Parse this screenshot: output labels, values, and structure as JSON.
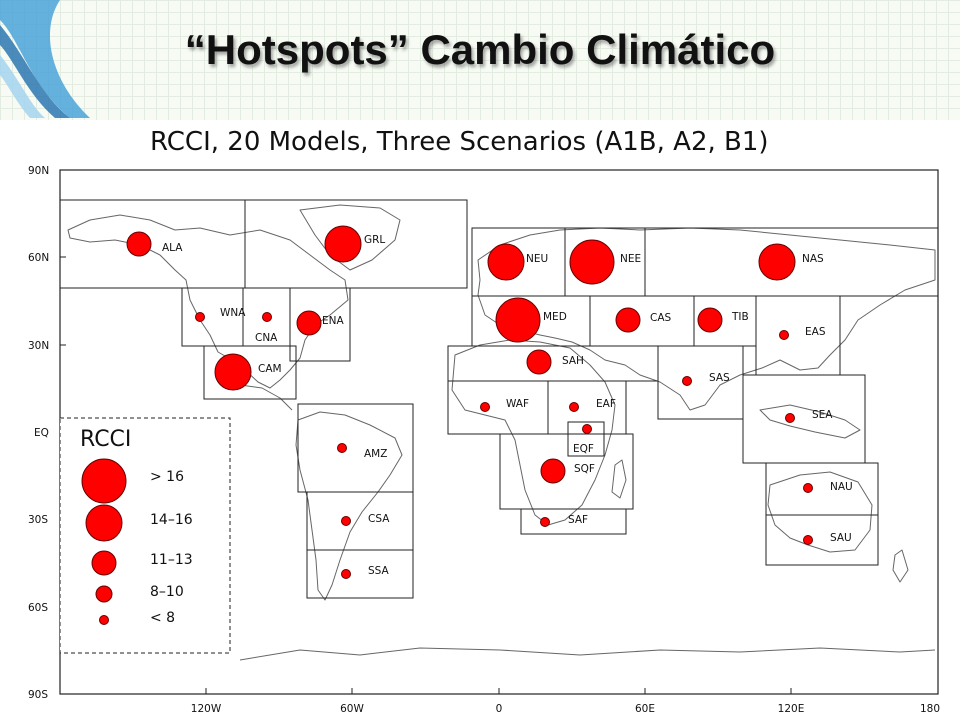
{
  "slide": {
    "title": "“Hotspots” Cambio Climático"
  },
  "map": {
    "title": "RCCI, 20 Models, Three Scenarios (A1B, A2, B1)",
    "y_axis_labels": [
      "90N",
      "60N",
      "30N",
      "EQ",
      "30S",
      "60S",
      "90S"
    ],
    "x_axis_labels": [
      "120W",
      "60W",
      "0",
      "60E",
      "120E",
      "180"
    ],
    "legend": {
      "title": "RCCI",
      "categories": [
        "> 16",
        "14–16",
        "11–13",
        "8–10",
        "< 8"
      ]
    },
    "regions": [
      {
        "code": "ALA",
        "rcci_class": 2
      },
      {
        "code": "GRL",
        "rcci_class": 1
      },
      {
        "code": "WNA",
        "rcci_class": 4
      },
      {
        "code": "CNA",
        "rcci_class": 4
      },
      {
        "code": "ENA",
        "rcci_class": 2
      },
      {
        "code": "CAM",
        "rcci_class": 1
      },
      {
        "code": "AMZ",
        "rcci_class": 5
      },
      {
        "code": "CSA",
        "rcci_class": 5
      },
      {
        "code": "SSA",
        "rcci_class": 5
      },
      {
        "code": "NEU",
        "rcci_class": 1
      },
      {
        "code": "NEE",
        "rcci_class": 0
      },
      {
        "code": "MED",
        "rcci_class": 0
      },
      {
        "code": "SAH",
        "rcci_class": 2
      },
      {
        "code": "WAF",
        "rcci_class": 4
      },
      {
        "code": "EAF",
        "rcci_class": 5
      },
      {
        "code": "EQF",
        "rcci_class": 5
      },
      {
        "code": "SQF",
        "rcci_class": 2
      },
      {
        "code": "SAF",
        "rcci_class": 4
      },
      {
        "code": "CAS",
        "rcci_class": 2
      },
      {
        "code": "TIB",
        "rcci_class": 2
      },
      {
        "code": "NAS",
        "rcci_class": 1
      },
      {
        "code": "EAS",
        "rcci_class": 5
      },
      {
        "code": "SAS",
        "rcci_class": 5
      },
      {
        "code": "SEA",
        "rcci_class": 4
      },
      {
        "code": "NAU",
        "rcci_class": 5
      },
      {
        "code": "SAU",
        "rcci_class": 4
      }
    ],
    "colors": {
      "marker": "#ff0000"
    }
  }
}
